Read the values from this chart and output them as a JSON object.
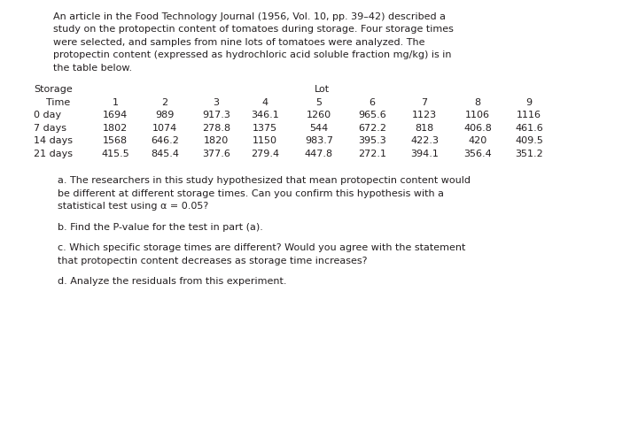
{
  "intro_lines": [
    "An article in the Food Technology Journal (1956, Vol. 10, pp. 39–42) described a",
    "study on the protopectin content of tomatoes during storage. Four storage times",
    "were selected, and samples from nine lots of tomatoes were analyzed. The",
    "protopectin content (expressed as hydrochloric acid soluble fraction mg/kg) is in",
    "the table below."
  ],
  "table_cols": [
    "1",
    "2",
    "3",
    "4",
    "5",
    "6",
    "7",
    "8",
    "9"
  ],
  "table_rows": [
    {
      "label": "0 day",
      "values": [
        "1694",
        "989",
        "917.3",
        "346.1",
        "1260",
        "965.6",
        "1123",
        "1106",
        "1116"
      ]
    },
    {
      "label": "7 days",
      "values": [
        "1802",
        "1074",
        "278.8",
        "1375",
        "544",
        "672.2",
        "818",
        "406.8",
        "461.6"
      ]
    },
    {
      "label": "14 days",
      "values": [
        "1568",
        "646.2",
        "1820",
        "1150",
        "983.7",
        "395.3",
        "422.3",
        "420",
        "409.5"
      ]
    },
    {
      "label": "21 days",
      "values": [
        "415.5",
        "845.4",
        "377.6",
        "279.4",
        "447.8",
        "272.1",
        "394.1",
        "356.4",
        "351.2"
      ]
    }
  ],
  "question_a_lines": [
    "a. The researchers in this study hypothesized that mean protopectin content would",
    "be different at different storage times. Can you confirm this hypothesis with a",
    "statistical test using α = 0.05?"
  ],
  "question_b": "b. Find the P-value for the test in part (a).",
  "question_c_lines": [
    "c. Which specific storage times are different? Would you agree with the statement",
    "that protopectin content decreases as storage time increases?"
  ],
  "question_d": "d. Analyze the residuals from this experiment.",
  "bg_color": "#ffffff",
  "text_color": "#231f20",
  "font_size": 8.0,
  "font_family": "DejaVu Sans"
}
